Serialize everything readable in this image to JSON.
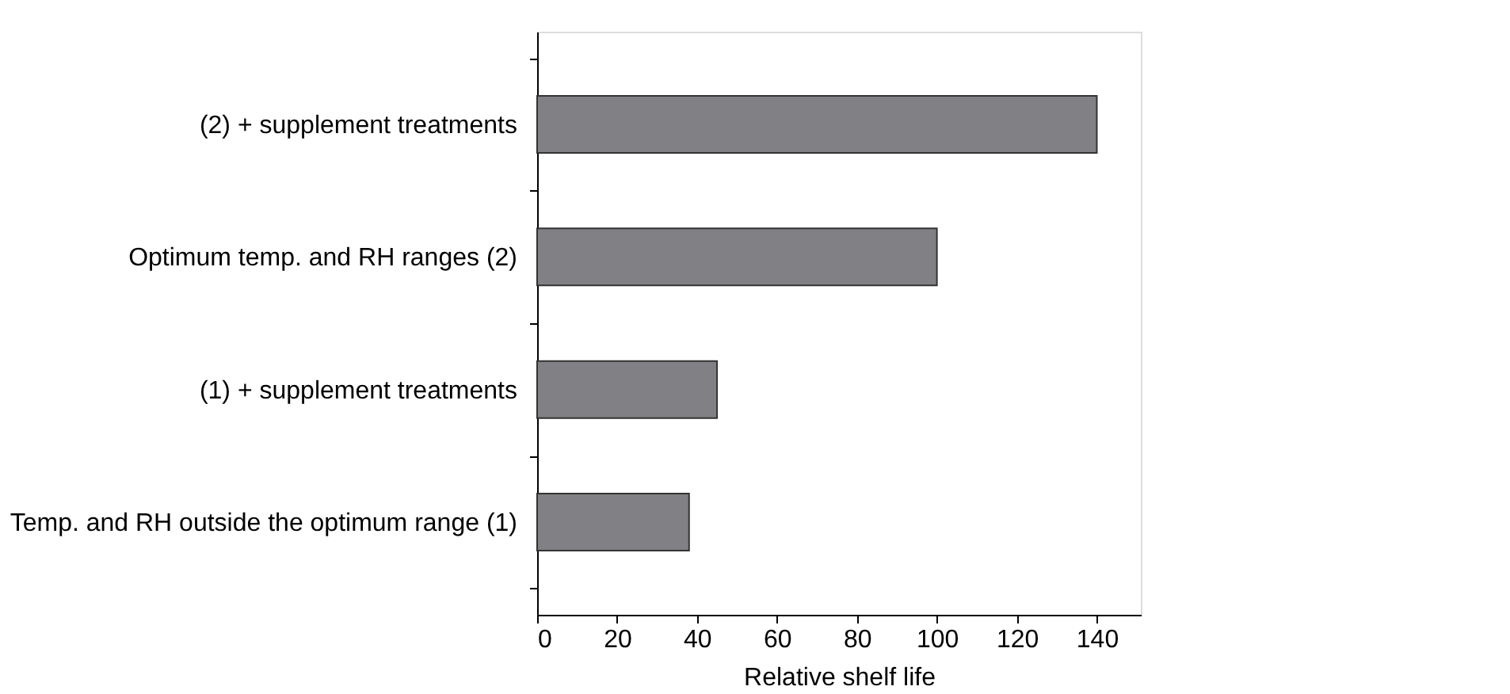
{
  "chart_data": {
    "type": "bar",
    "orientation": "horizontal",
    "xlabel": "Relative shelf life",
    "categories": [
      "(2) + supplement treatments",
      "Optimum temp. and RH ranges (2)",
      "(1) + supplement treatments",
      "Temp. and RH outside the optimum range (1)"
    ],
    "values": [
      140,
      100,
      45,
      38
    ],
    "color": "#808085",
    "xlim": [
      0,
      151
    ],
    "xticks": [
      0,
      20,
      40,
      60,
      80,
      100,
      120,
      140
    ],
    "grid": false
  }
}
